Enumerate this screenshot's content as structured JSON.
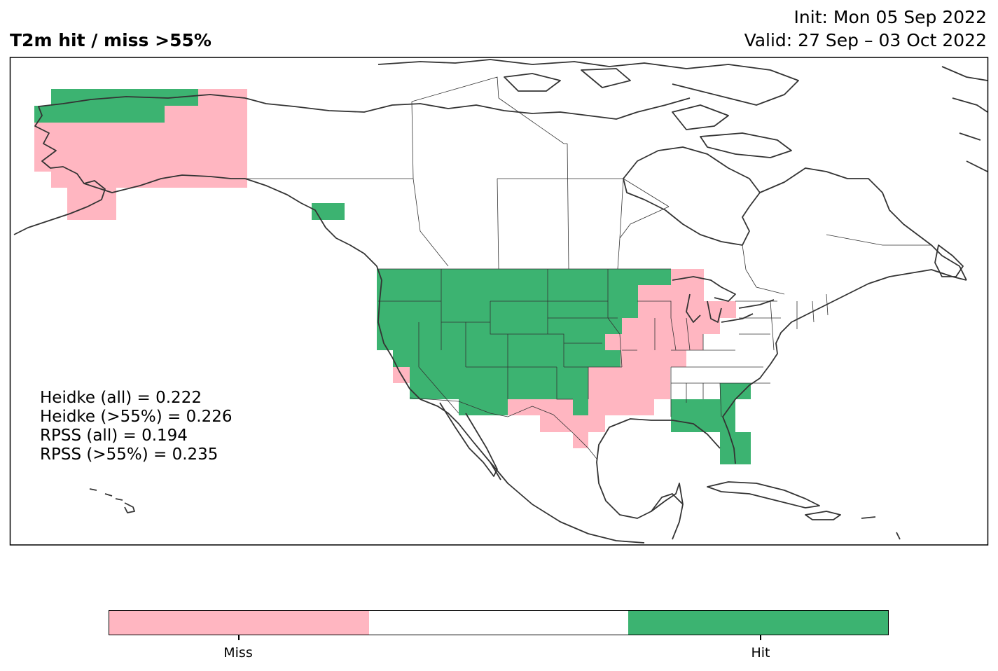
{
  "header": {
    "title": "T2m hit / miss  >55%",
    "init": "Init: Mon 05 Sep 2022",
    "valid": "Valid: 27 Sep – 03 Oct 2022"
  },
  "scores": [
    "Heidke (all) = 0.222",
    "Heidke (>55%) = 0.226",
    "RPSS (all) = 0.194",
    "RPSS (>55%) = 0.235"
  ],
  "colorbar": {
    "colors": [
      "#ffb6c1",
      "#ffffff",
      "#3cb371"
    ],
    "labels": [
      "Miss",
      "Hit"
    ]
  },
  "map": {
    "region": "North America",
    "miss_color": "#ffb6c1",
    "hit_color": "#3cb371",
    "coastline_color": "#333333"
  }
}
